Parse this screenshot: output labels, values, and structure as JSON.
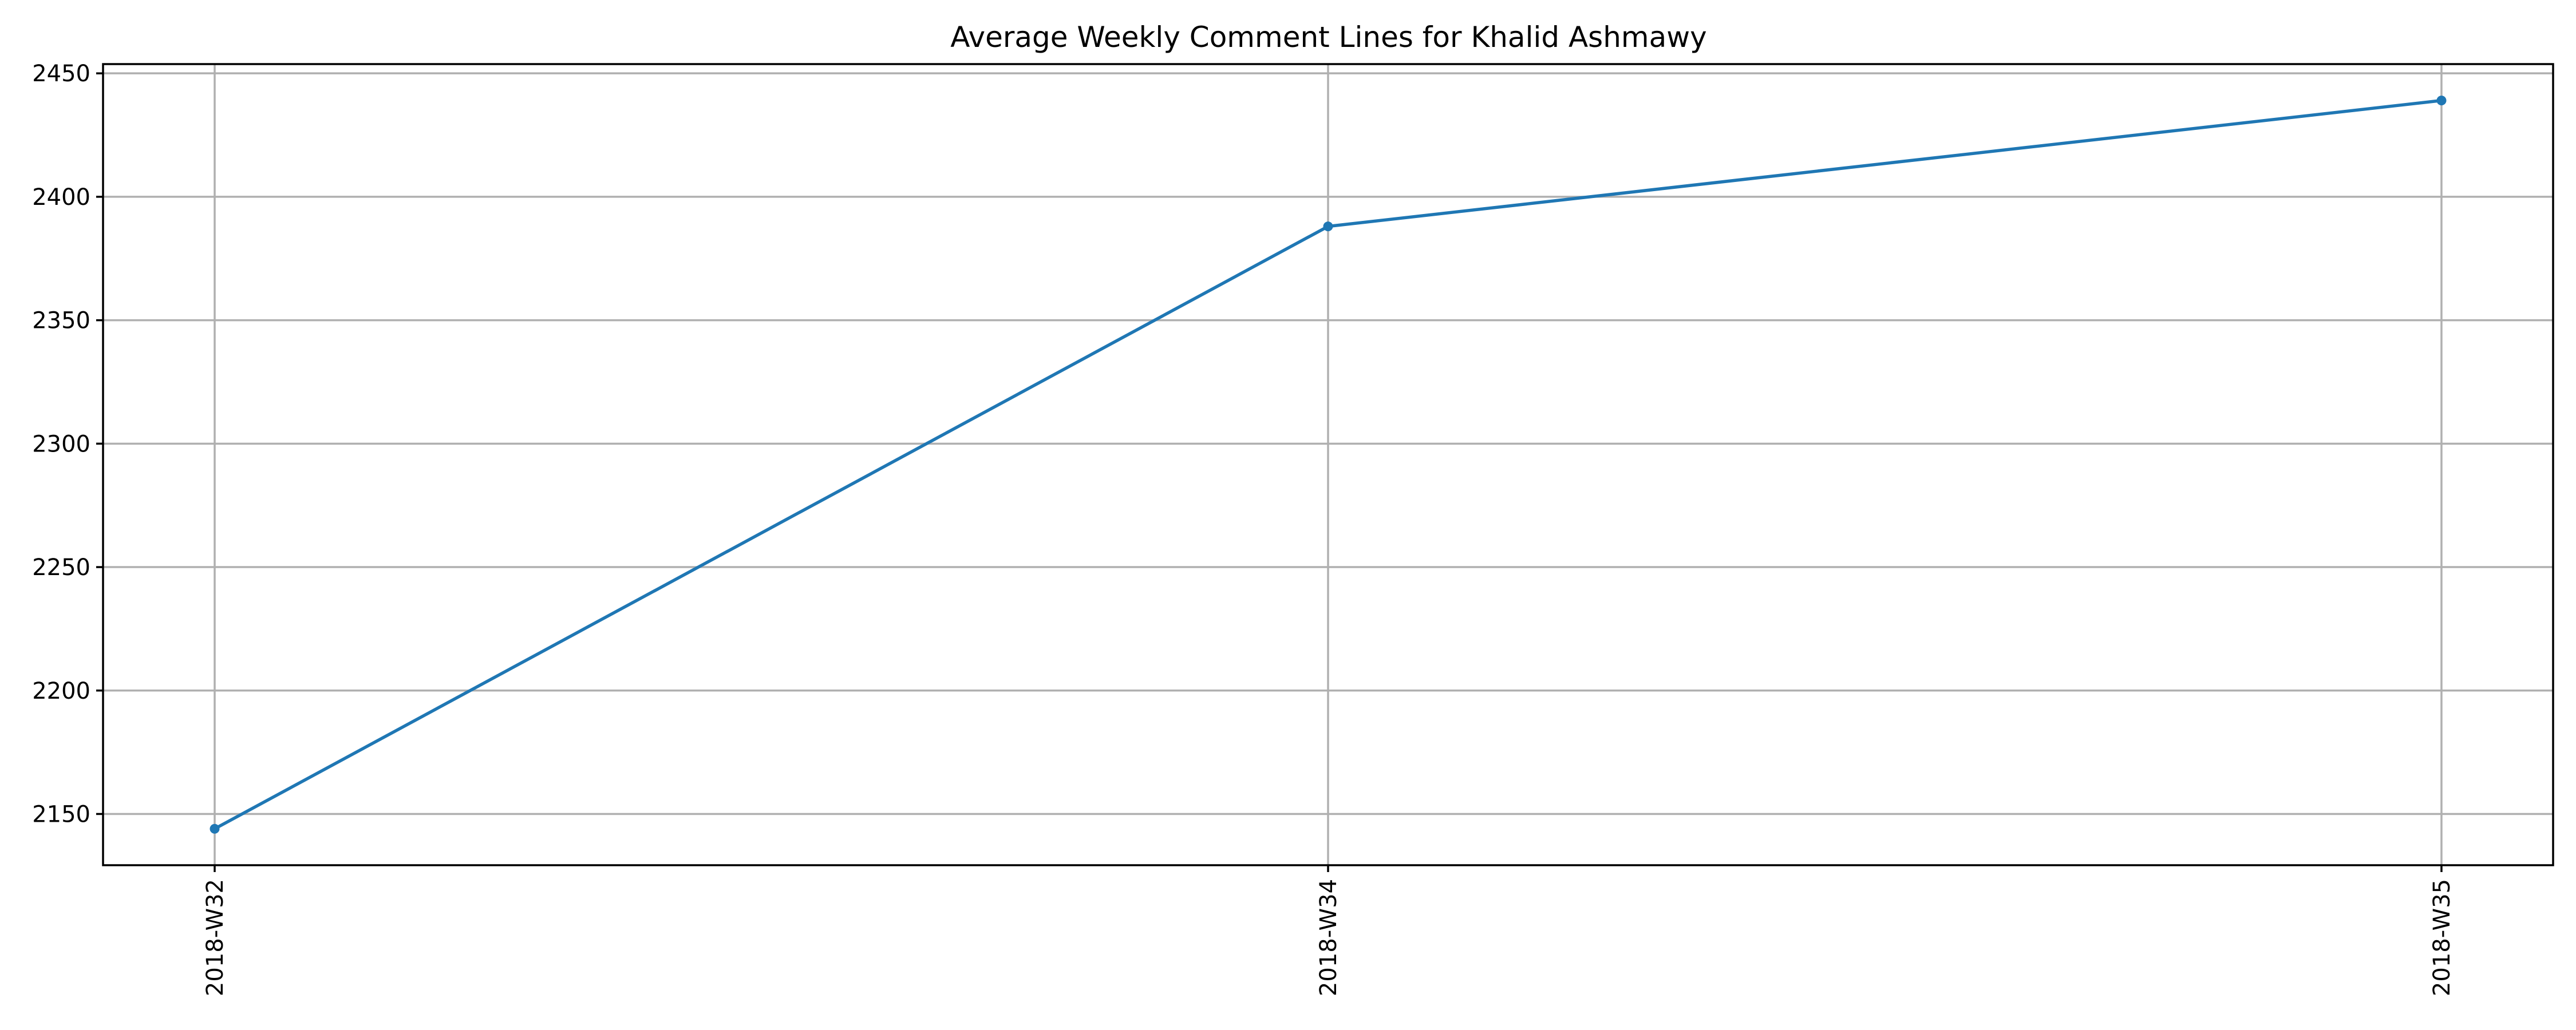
{
  "chart_data": {
    "type": "line",
    "title": "Average Weekly Comment Lines for Khalid Ashmawy",
    "xlabel": "",
    "ylabel": "",
    "categories": [
      "2018-W32",
      "2018-W34",
      "2018-W35"
    ],
    "series": [
      {
        "values": [
          2144,
          2388,
          2439
        ],
        "color": "#1f77b4",
        "marker": "circle"
      }
    ],
    "ylim": [
      2129.25,
      2453.75
    ],
    "yticks": [
      2150,
      2200,
      2250,
      2300,
      2350,
      2400,
      2450
    ],
    "ytick_labels": [
      "2150",
      "2200",
      "2250",
      "2300",
      "2350",
      "2400",
      "2450"
    ],
    "xtick_rotation": "vertical",
    "grid": true,
    "legend": "none"
  }
}
